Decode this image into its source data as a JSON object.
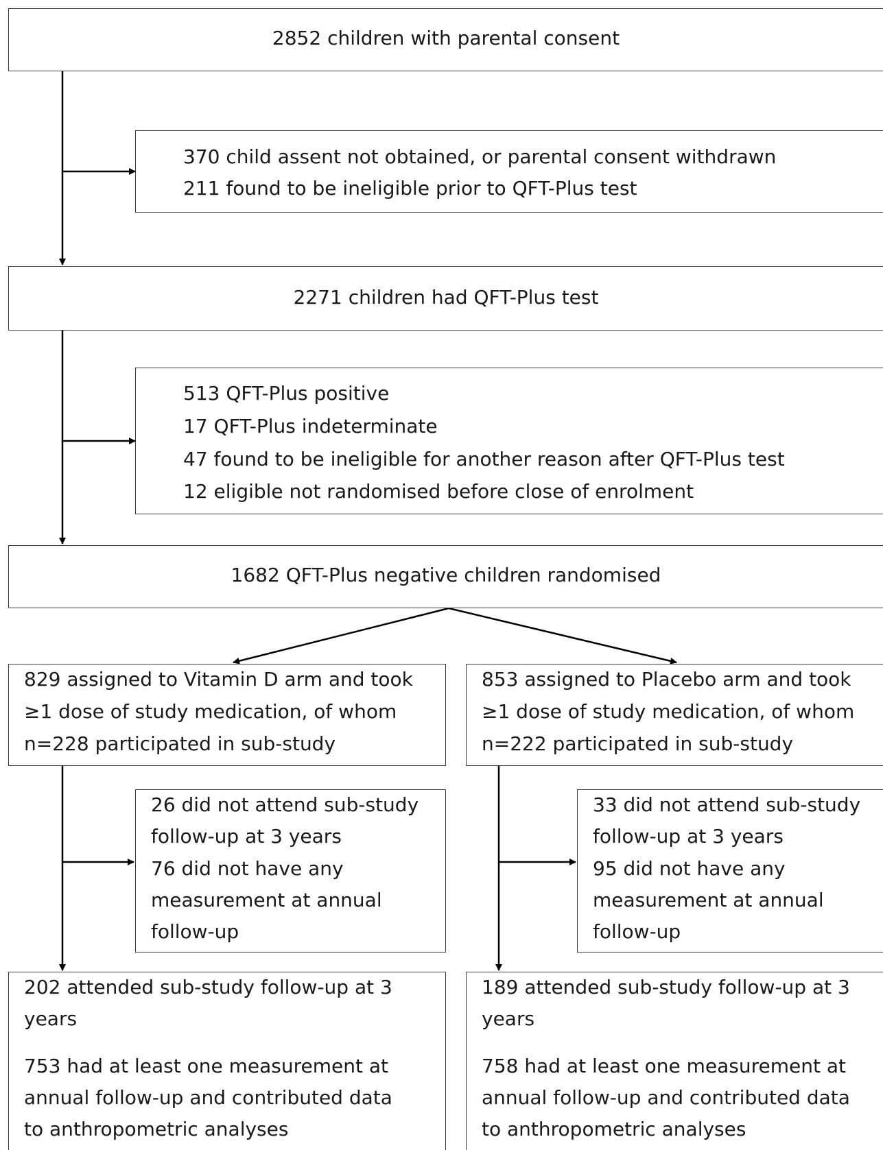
{
  "flowchart": {
    "consent_box": "2852 children with parental consent",
    "exclusion_box_1": [
      "370 child assent not obtained, or parental consent withdrawn",
      "211 found to be ineligible  prior to QFT-Plus test"
    ],
    "qft_box": "2271 children had QFT-Plus test",
    "exclusion_box_2": [
      "513 QFT-Plus positive",
      "17 QFT-Plus indeterminate",
      "47 found to be ineligible  for another reason after QFT-Plus test",
      "12 eligible  not randomised before close of enrolment"
    ],
    "randomised_box": "1682 QFT-Plus negative children randomised",
    "vitamin_d_arm": [
      "829 assigned to Vitamin D arm and took",
      "≥1 dose of study medication, of whom",
      "n=228 participated in sub-study"
    ],
    "placebo_arm": [
      "853 assigned to Placebo arm and took",
      "≥1 dose of study medication, of whom",
      "n=222 participated in sub-study"
    ],
    "vitamin_d_loss": [
      "26 did not attend sub-study",
      "follow-up at 3 years",
      "76 did not have any",
      "measurement at annual",
      "follow-up"
    ],
    "placebo_loss": [
      "33 did not attend sub-study",
      "follow-up at 3 years",
      "95 did not have any",
      "measurement at annual",
      "follow-up"
    ],
    "vitamin_d_followup": [
      "202 attended sub-study  follow-up at 3",
      "years",
      "753 had at least one measurement  at",
      "annual follow-up and contributed data",
      "to anthropometric analyses"
    ],
    "placebo_followup": [
      "189 attended sub-study  follow-up at 3",
      "years",
      "758 had at least one measurement  at",
      "annual follow-up and contributed data",
      "to anthropometric analyses"
    ]
  }
}
